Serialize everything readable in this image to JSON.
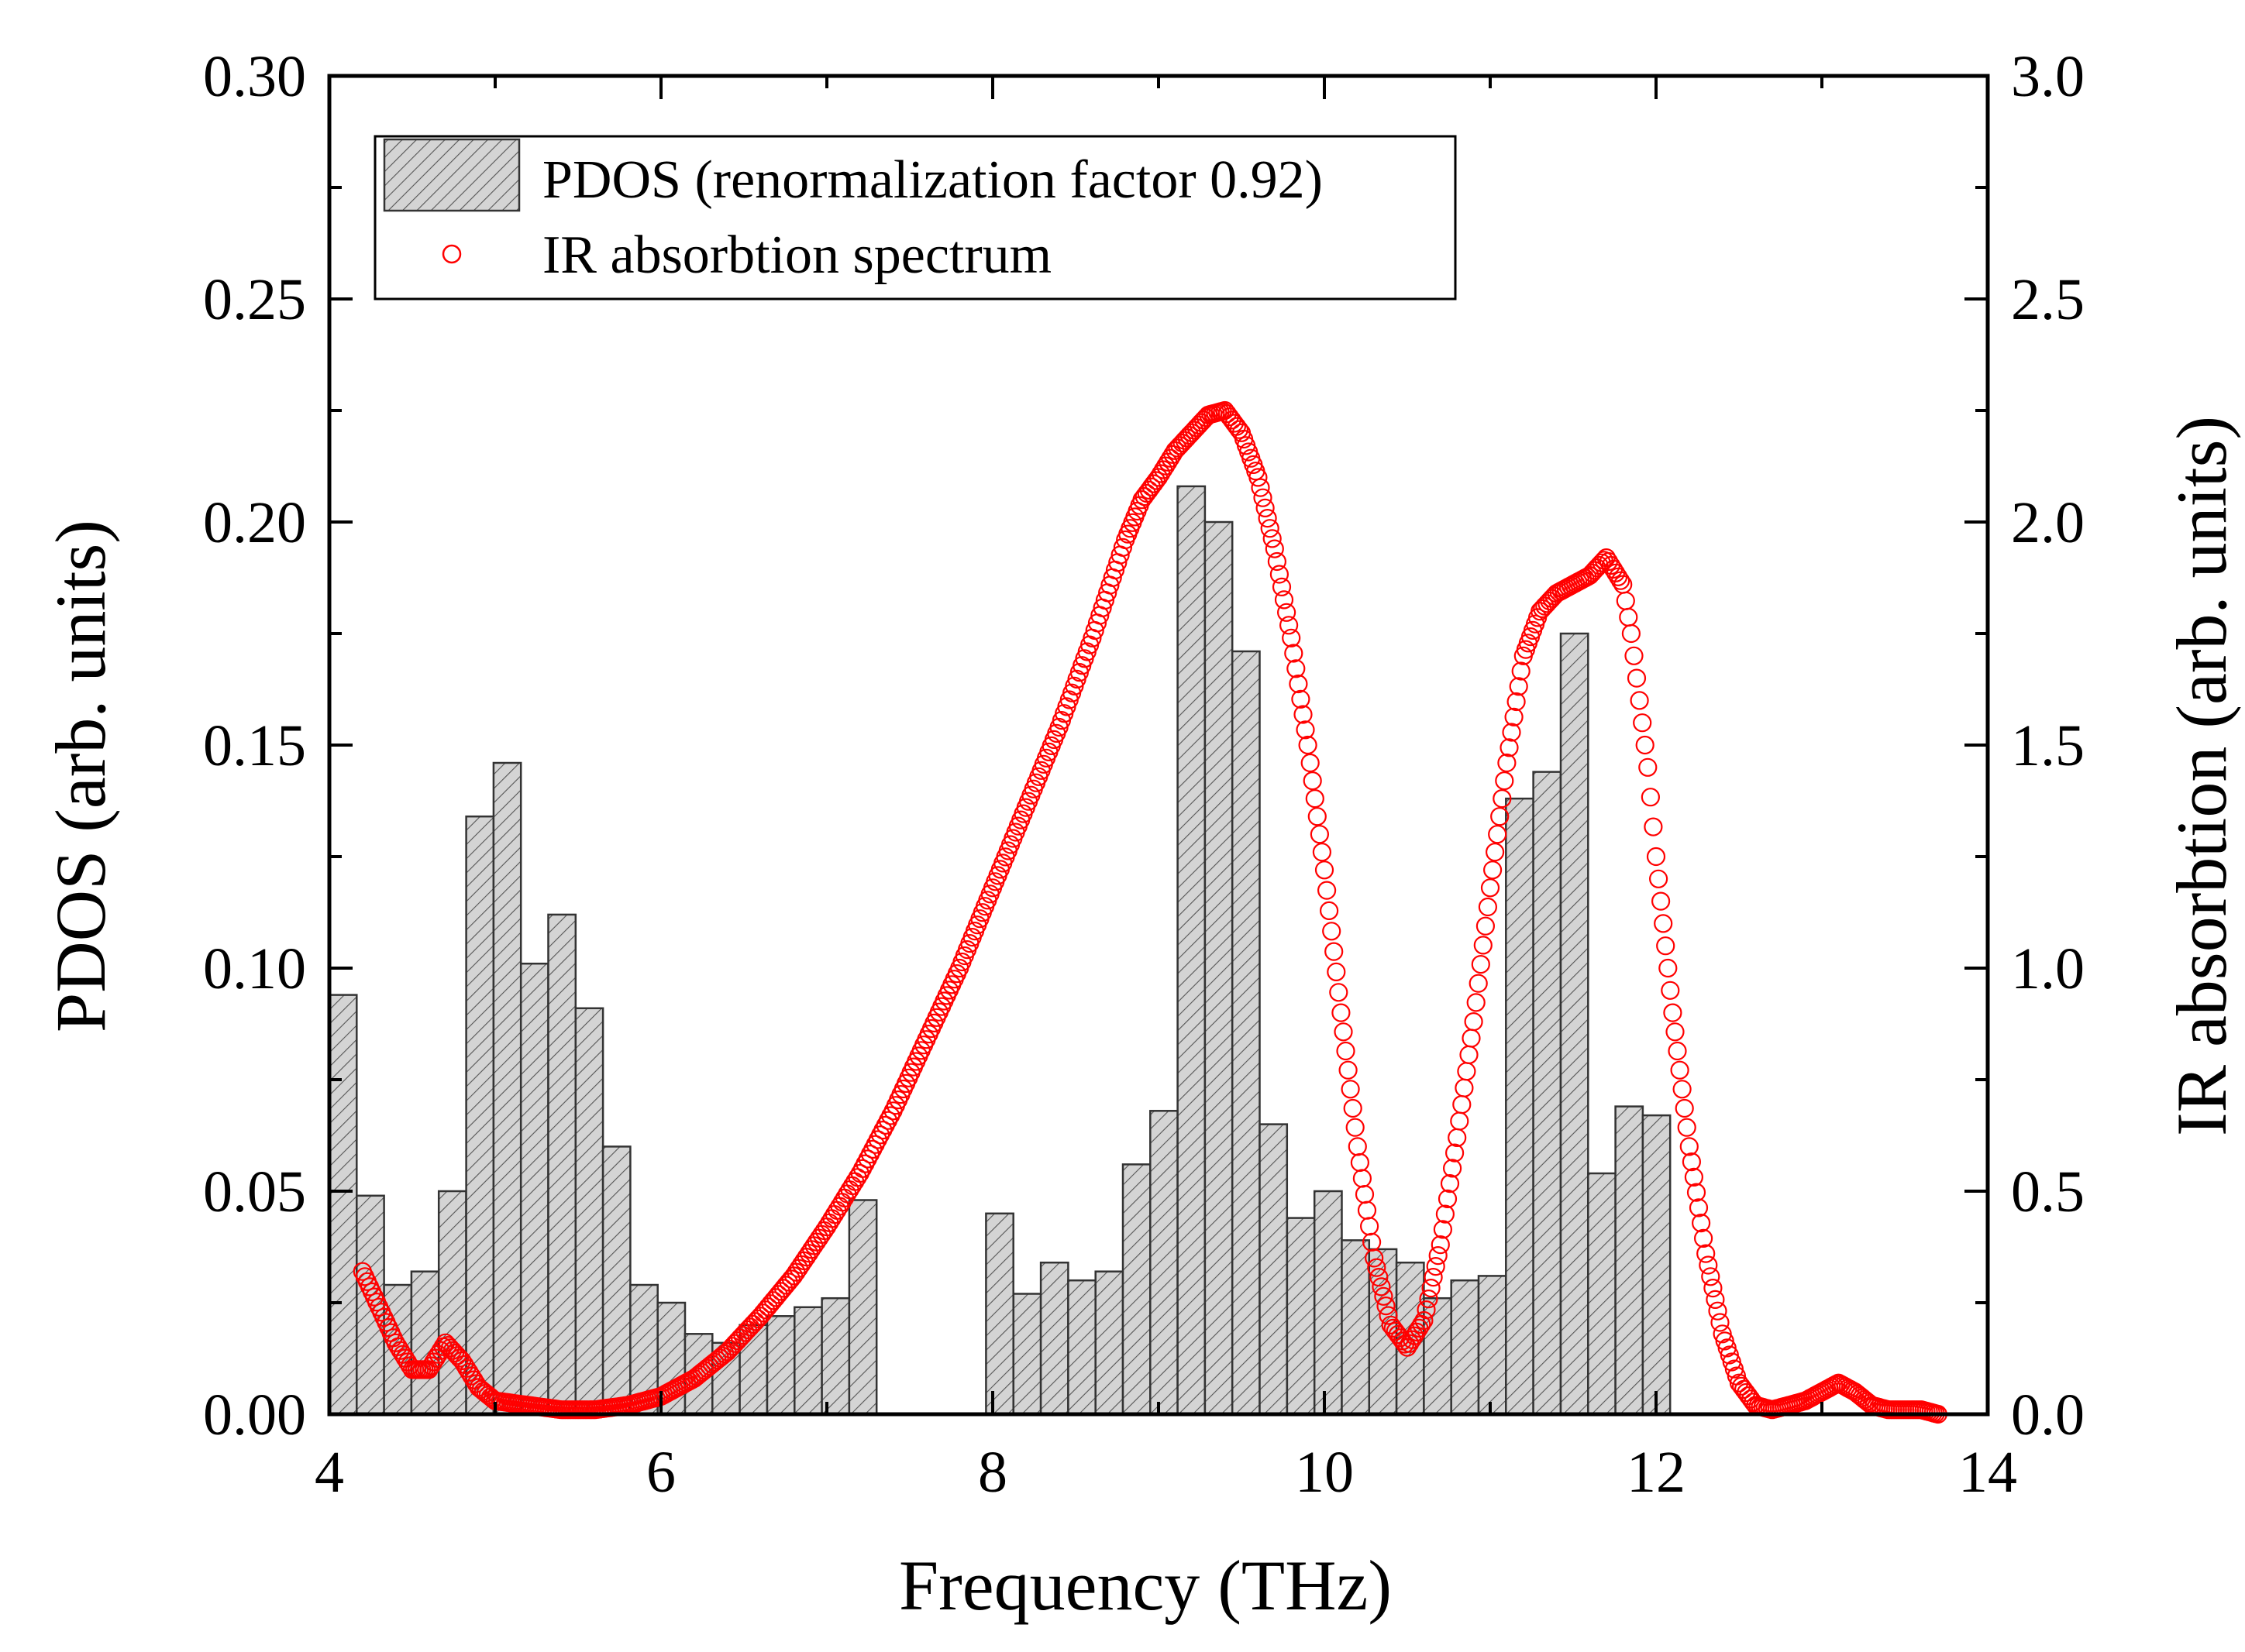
{
  "chart_data": {
    "type": "bar",
    "xlabel": "Frequency (THz)",
    "ylabel_left": "PDOS (arb. units)",
    "ylabel_right": "IR absorbtion (arb. units)",
    "xlim": [
      4,
      14
    ],
    "ylim_left": [
      0,
      0.3
    ],
    "ylim_right": [
      0,
      3.0
    ],
    "x_ticks": [
      "4",
      "6",
      "8",
      "10",
      "12",
      "14"
    ],
    "y_left_ticks": [
      "0.00",
      "0.05",
      "0.10",
      "0.15",
      "0.20",
      "0.25",
      "0.30"
    ],
    "y_right_ticks": [
      "0.0",
      "0.5",
      "1.0",
      "1.5",
      "2.0",
      "2.5",
      "3.0"
    ],
    "legend": {
      "placement": "top-left",
      "entries": [
        "PDOS (renormalization factor 0.92)",
        "IR absorbtion spectrum"
      ]
    },
    "series": [
      {
        "name": "PDOS (renormalization factor 0.92)",
        "kind": "bar",
        "axis": "left",
        "color": "#d3d3d3",
        "bin_width": 0.165,
        "x": [
          4.0,
          4.165,
          4.33,
          4.495,
          4.66,
          4.825,
          4.99,
          5.155,
          5.32,
          5.485,
          5.65,
          5.815,
          5.98,
          6.145,
          6.31,
          6.475,
          6.64,
          6.805,
          6.97,
          7.135,
          7.96,
          8.125,
          8.29,
          8.455,
          8.62,
          8.785,
          8.95,
          9.115,
          9.28,
          9.445,
          9.61,
          9.775,
          9.94,
          10.105,
          10.27,
          10.435,
          10.6,
          10.765,
          10.93,
          11.095,
          11.26,
          11.425,
          11.59,
          11.755,
          11.92
        ],
        "values": [
          0.094,
          0.049,
          0.029,
          0.032,
          0.05,
          0.134,
          0.146,
          0.101,
          0.112,
          0.091,
          0.06,
          0.029,
          0.025,
          0.018,
          0.016,
          0.02,
          0.022,
          0.024,
          0.026,
          0.048,
          0.045,
          0.027,
          0.034,
          0.03,
          0.032,
          0.056,
          0.068,
          0.208,
          0.2,
          0.171,
          0.065,
          0.044,
          0.05,
          0.039,
          0.037,
          0.034,
          0.026,
          0.03,
          0.031,
          0.138,
          0.144,
          0.175,
          0.054,
          0.069,
          0.067
        ]
      },
      {
        "name": "IR absorbtion spectrum",
        "kind": "scatter",
        "axis": "right",
        "color": "#ff0000",
        "x": [
          4.2,
          4.3,
          4.4,
          4.5,
          4.6,
          4.7,
          4.8,
          4.9,
          5.0,
          5.2,
          5.4,
          5.6,
          5.8,
          6.0,
          6.2,
          6.4,
          6.6,
          6.8,
          7.0,
          7.2,
          7.4,
          7.6,
          7.8,
          8.0,
          8.2,
          8.4,
          8.6,
          8.8,
          8.9,
          9.0,
          9.1,
          9.2,
          9.3,
          9.4,
          9.5,
          9.6,
          9.7,
          9.8,
          9.9,
          10.0,
          10.1,
          10.2,
          10.3,
          10.4,
          10.5,
          10.6,
          10.7,
          10.8,
          10.9,
          11.0,
          11.1,
          11.2,
          11.3,
          11.4,
          11.5,
          11.6,
          11.7,
          11.8,
          11.85,
          11.9,
          11.95,
          12.0,
          12.1,
          12.2,
          12.3,
          12.4,
          12.5,
          12.6,
          12.7,
          12.8,
          12.9,
          13.0,
          13.1,
          13.2,
          13.3,
          13.4,
          13.5,
          13.6,
          13.7
        ],
        "values": [
          0.32,
          0.24,
          0.16,
          0.1,
          0.1,
          0.16,
          0.12,
          0.06,
          0.03,
          0.02,
          0.01,
          0.01,
          0.02,
          0.04,
          0.08,
          0.14,
          0.22,
          0.31,
          0.42,
          0.54,
          0.68,
          0.84,
          1.0,
          1.18,
          1.36,
          1.54,
          1.74,
          1.96,
          2.05,
          2.1,
          2.16,
          2.2,
          2.24,
          2.25,
          2.2,
          2.1,
          1.94,
          1.74,
          1.5,
          1.22,
          0.9,
          0.6,
          0.35,
          0.2,
          0.15,
          0.21,
          0.38,
          0.62,
          0.88,
          1.18,
          1.46,
          1.7,
          1.8,
          1.84,
          1.86,
          1.88,
          1.92,
          1.86,
          1.75,
          1.6,
          1.45,
          1.25,
          0.9,
          0.6,
          0.36,
          0.18,
          0.07,
          0.02,
          0.01,
          0.02,
          0.03,
          0.05,
          0.07,
          0.05,
          0.02,
          0.01,
          0.01,
          0.01,
          0.0
        ]
      }
    ]
  }
}
